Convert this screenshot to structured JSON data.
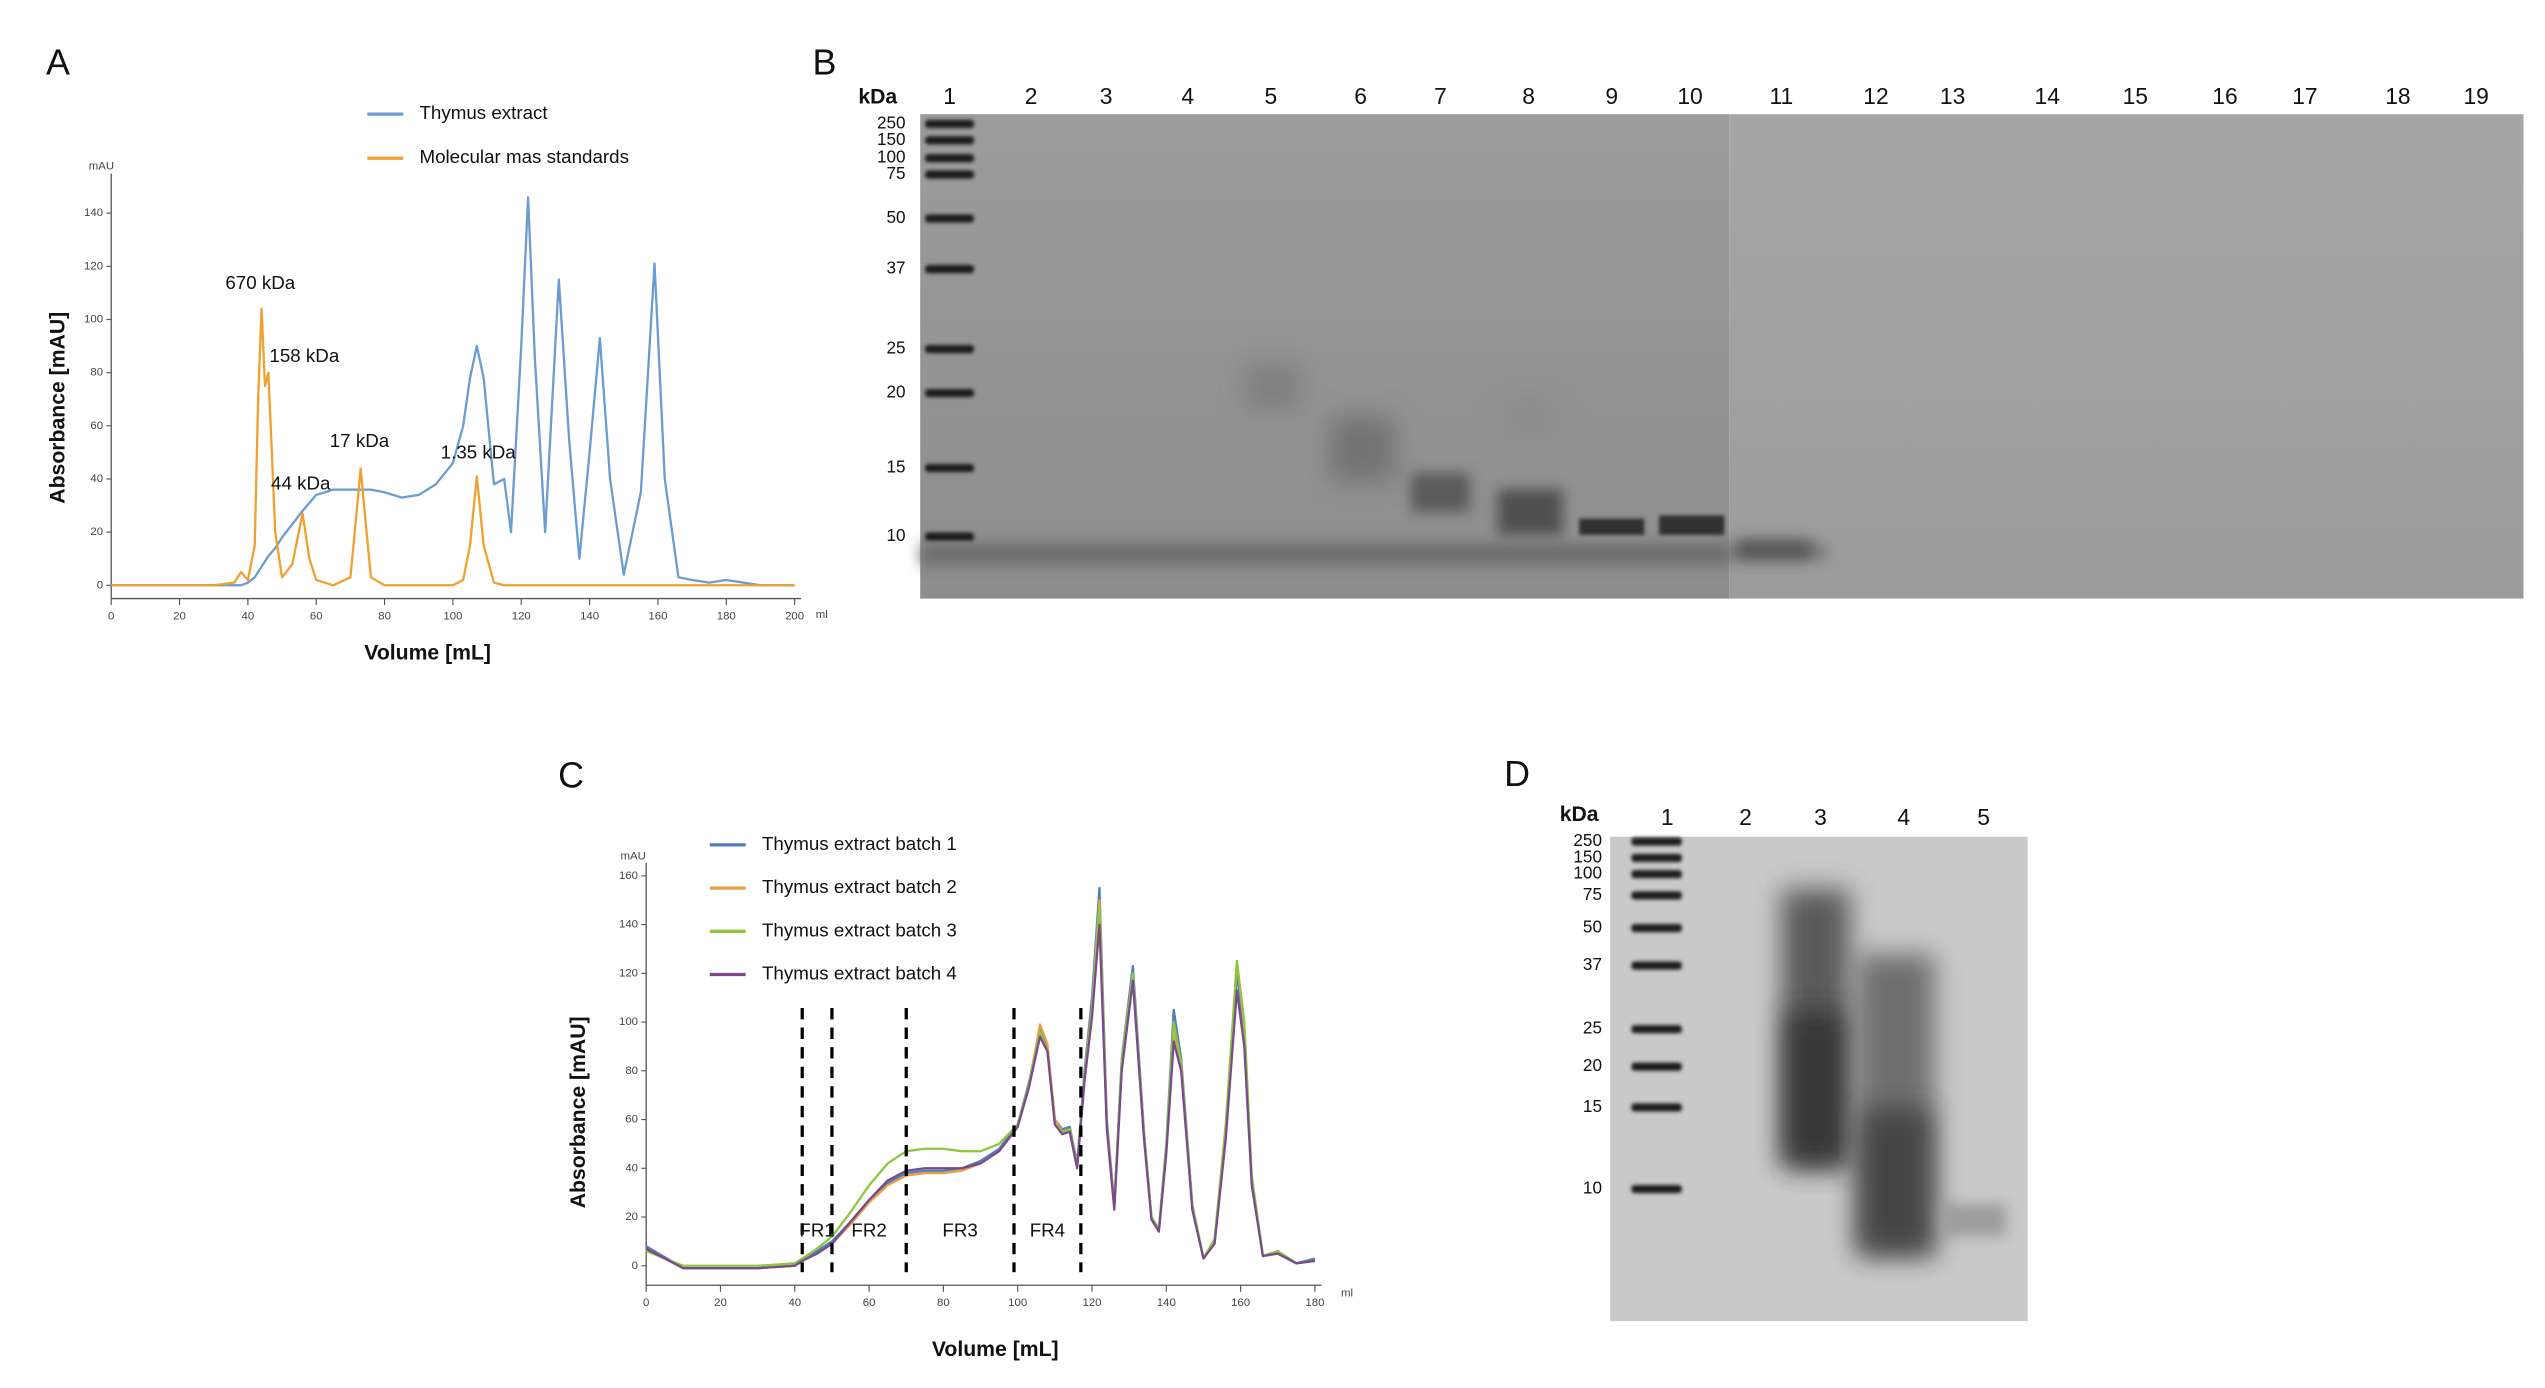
{
  "chart_data": [
    {
      "type": "line",
      "panel": "A",
      "x_label": "Volume [mL]",
      "y_label": "Absorbance [mAU]",
      "x_unit": "ml",
      "y_unit": "mAU",
      "xlim": [
        0,
        200
      ],
      "ylim": [
        -5,
        150
      ],
      "xticks": [
        0,
        20,
        40,
        60,
        80,
        100,
        120,
        140,
        160,
        180,
        200
      ],
      "yticks": [
        0,
        20,
        40,
        60,
        80,
        100,
        120,
        140
      ],
      "x": [
        0,
        10,
        20,
        30,
        36,
        38,
        40,
        42,
        43,
        44,
        45,
        46,
        48,
        50,
        53,
        56,
        58,
        60,
        65,
        70,
        72,
        73,
        74,
        76,
        80,
        85,
        90,
        95,
        100,
        103,
        105,
        107,
        109,
        112,
        115,
        117,
        120,
        122,
        124,
        127,
        131,
        134,
        137,
        140,
        143,
        146,
        150,
        155,
        159,
        162,
        166,
        170,
        175,
        180,
        185,
        190,
        200
      ],
      "series": [
        {
          "name": "Thymus extract",
          "color": "#6a9bd1",
          "values": [
            0,
            0,
            0,
            0,
            0,
            0,
            1,
            3,
            5,
            7,
            9,
            11,
            14,
            18,
            23,
            28,
            31,
            34,
            36,
            36,
            36,
            36,
            36,
            36,
            35,
            33,
            34,
            38,
            46,
            60,
            78,
            90,
            78,
            38,
            40,
            20,
            90,
            146,
            85,
            20,
            115,
            55,
            10,
            50,
            93,
            40,
            4,
            35,
            121,
            40,
            3,
            2,
            1,
            2,
            1,
            0,
            0
          ]
        },
        {
          "name": "Molecular mas standards",
          "color": "#f0a030",
          "values": [
            0,
            0,
            0,
            0,
            1,
            5,
            2,
            15,
            70,
            104,
            75,
            80,
            20,
            3,
            8,
            27,
            10,
            2,
            0,
            3,
            30,
            44,
            30,
            3,
            0,
            0,
            0,
            0,
            0,
            2,
            15,
            41,
            15,
            1,
            0,
            0,
            0,
            0,
            0,
            0,
            0,
            0,
            0,
            0,
            0,
            0,
            0,
            0,
            0,
            0,
            0,
            0,
            0,
            0,
            0,
            0,
            0
          ]
        }
      ],
      "annotations": [
        "670 kDa",
        "158 kDa",
        "44 kDa",
        "17 kDa",
        "1.35 kDa"
      ]
    },
    {
      "type": "line",
      "panel": "C",
      "x_label": "Volume [mL]",
      "y_label": "Absorbance [mAU]",
      "x_unit": "ml",
      "y_unit": "mAU",
      "xlim": [
        0,
        180
      ],
      "ylim": [
        -8,
        160
      ],
      "xticks": [
        0,
        20,
        40,
        60,
        80,
        100,
        120,
        140,
        160,
        180
      ],
      "yticks": [
        0,
        20,
        40,
        60,
        80,
        100,
        120,
        140,
        160
      ],
      "x": [
        0,
        10,
        20,
        30,
        40,
        42,
        46,
        50,
        55,
        60,
        65,
        70,
        75,
        80,
        85,
        90,
        95,
        100,
        103,
        106,
        108,
        110,
        112,
        114,
        116,
        118,
        120,
        122,
        124,
        126,
        128,
        131,
        134,
        136,
        138,
        140,
        142,
        144,
        147,
        150,
        153,
        156,
        159,
        161,
        163,
        166,
        170,
        175,
        180
      ],
      "series": [
        {
          "name": "Thymus extract batch 1",
          "color": "#4f7fb8",
          "values": [
            8,
            -1,
            -1,
            -1,
            0,
            2,
            6,
            10,
            18,
            27,
            34,
            38,
            39,
            39,
            40,
            43,
            48,
            58,
            75,
            97,
            90,
            60,
            56,
            57,
            42,
            80,
            110,
            155,
            60,
            25,
            85,
            123,
            55,
            20,
            15,
            50,
            105,
            85,
            25,
            3,
            10,
            55,
            120,
            95,
            35,
            4,
            6,
            1,
            3
          ]
        },
        {
          "name": "Thymus extract batch 2",
          "color": "#e8a040",
          "values": [
            7,
            -1,
            -1,
            -1,
            0,
            2,
            5,
            9,
            17,
            26,
            33,
            37,
            38,
            38,
            39,
            42,
            47,
            57,
            74,
            99,
            91,
            60,
            55,
            56,
            41,
            78,
            106,
            150,
            58,
            24,
            82,
            118,
            53,
            20,
            14,
            48,
            95,
            82,
            24,
            3,
            10,
            56,
            125,
            98,
            36,
            4,
            5,
            1,
            2
          ]
        },
        {
          "name": "Thymus extract batch 3",
          "color": "#8dc63f",
          "values": [
            6,
            0,
            0,
            0,
            1,
            3,
            7,
            12,
            22,
            33,
            42,
            47,
            48,
            48,
            47,
            47,
            50,
            58,
            74,
            96,
            88,
            58,
            55,
            56,
            41,
            78,
            105,
            147,
            58,
            24,
            84,
            120,
            55,
            20,
            15,
            50,
            100,
            83,
            25,
            3,
            11,
            58,
            125,
            100,
            37,
            4,
            6,
            1,
            2
          ]
        },
        {
          "name": "Thymus extract batch 4",
          "color": "#7b4a8c",
          "values": [
            7,
            -1,
            -1,
            -1,
            0,
            2,
            5,
            9,
            18,
            27,
            35,
            39,
            40,
            40,
            40,
            42,
            47,
            57,
            73,
            94,
            88,
            58,
            54,
            55,
            40,
            76,
            102,
            140,
            56,
            23,
            80,
            117,
            52,
            19,
            14,
            46,
            92,
            80,
            23,
            3,
            9,
            52,
            113,
            90,
            33,
            4,
            5,
            1,
            2
          ]
        }
      ],
      "fraction_bounds": [
        42,
        50,
        70,
        99,
        117
      ],
      "fractions": [
        "FR1",
        "FR2",
        "FR3",
        "FR4"
      ]
    }
  ],
  "gels": [
    {
      "panel": "B",
      "header": "kDa",
      "lanes": [
        1,
        2,
        3,
        4,
        5,
        6,
        7,
        8,
        9,
        10,
        11,
        12,
        13,
        14,
        15,
        16,
        17,
        18,
        19
      ],
      "markers": [
        250,
        150,
        100,
        75,
        50,
        37,
        25,
        20,
        15,
        10
      ]
    },
    {
      "panel": "D",
      "header": "kDa",
      "lanes": [
        1,
        2,
        3,
        4,
        5
      ],
      "markers": [
        250,
        150,
        100,
        75,
        50,
        37,
        25,
        20,
        15,
        10
      ]
    }
  ]
}
